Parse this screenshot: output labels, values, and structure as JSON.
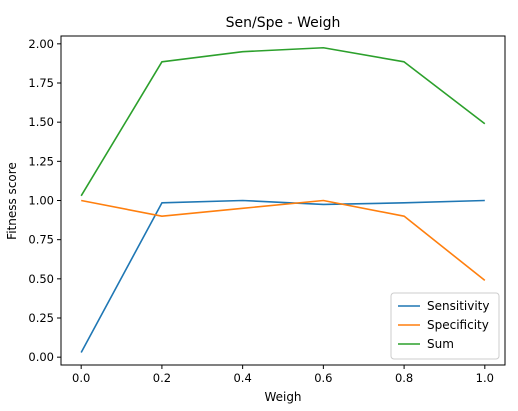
{
  "chart_data": {
    "type": "line",
    "title": "Sen/Spe - Weigh",
    "xlabel": "Weigh",
    "ylabel": "Fitness score",
    "x": [
      0.0,
      0.2,
      0.4,
      0.6,
      0.8,
      1.0
    ],
    "xlim": [
      -0.05,
      1.05
    ],
    "ylim": [
      -0.05,
      2.05
    ],
    "xticks": [
      "0.0",
      "0.2",
      "0.4",
      "0.6",
      "0.8",
      "1.0"
    ],
    "yticks": [
      "0.00",
      "0.25",
      "0.50",
      "0.75",
      "1.00",
      "1.25",
      "1.50",
      "1.75",
      "2.00"
    ],
    "grid": false,
    "legend_position": "lower-right",
    "series": [
      {
        "name": "Sensitivity",
        "color": "#1f77b4",
        "values": [
          0.03,
          0.985,
          1.0,
          0.975,
          0.985,
          1.0
        ]
      },
      {
        "name": "Specificity",
        "color": "#ff7f0e",
        "values": [
          1.0,
          0.9,
          0.95,
          1.0,
          0.9,
          0.49
        ]
      },
      {
        "name": "Sum",
        "color": "#2ca02c",
        "values": [
          1.03,
          1.885,
          1.95,
          1.975,
          1.885,
          1.49
        ]
      }
    ]
  }
}
